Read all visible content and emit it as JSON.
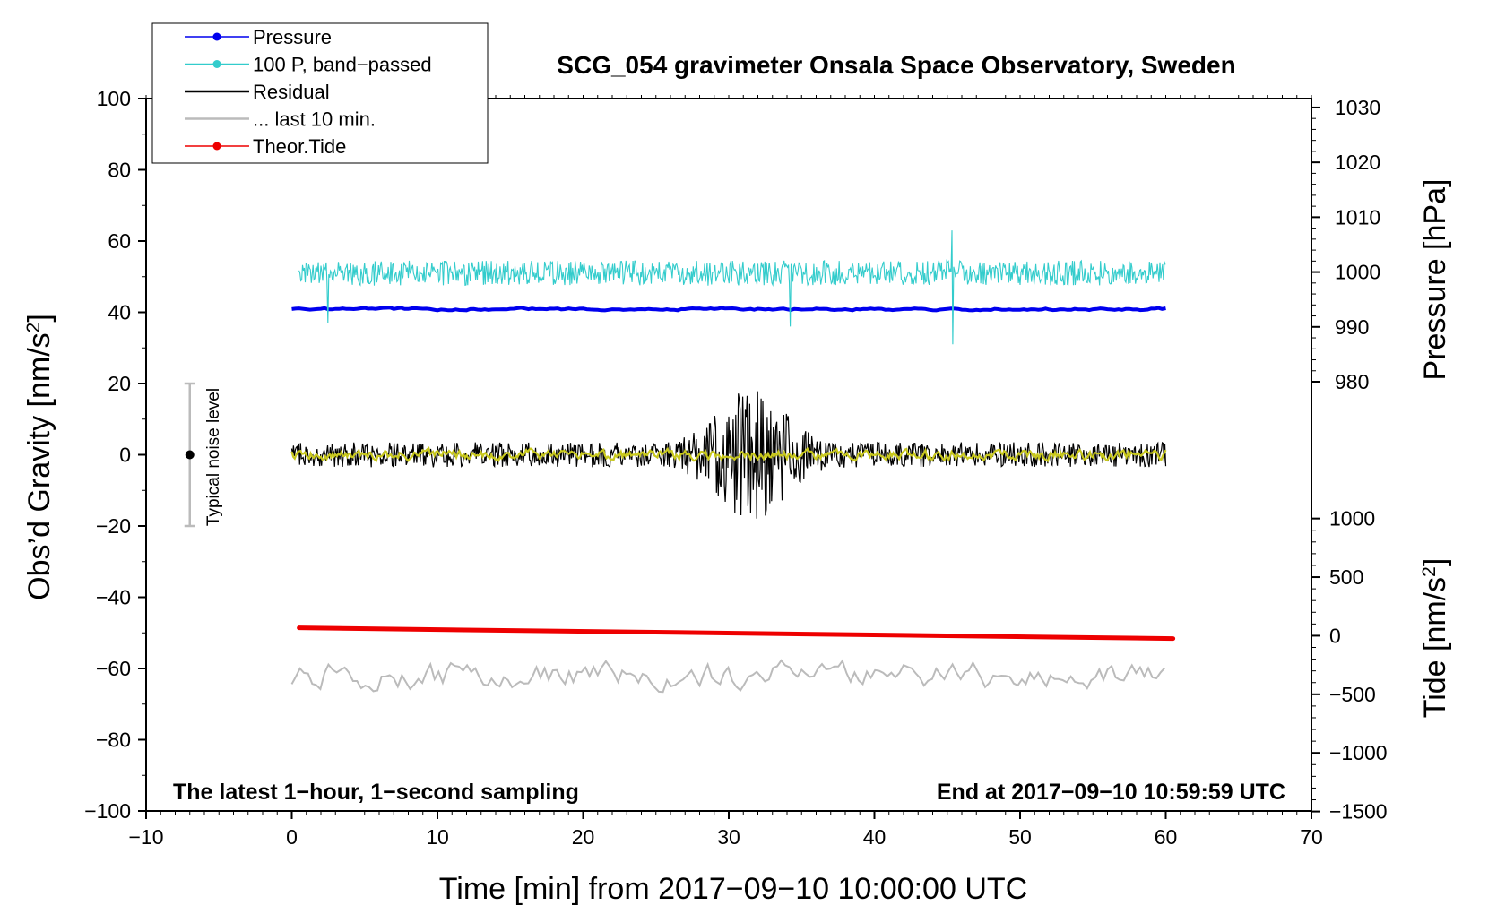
{
  "chart_data": {
    "type": "line",
    "title": "SCG_054 gravimeter Onsala Space Observatory, Sweden",
    "xlabel": "Time [min] from 2017−09−10 10:00:00 UTC",
    "ylabel": "Obs’d Gravity [nm/s²]",
    "ylabel_main": "Obs’d Gravity [nm/s",
    "ylabel_sup": "2",
    "ylabel_end": "]",
    "right_pressure_label": "Pressure [hPa]",
    "right_tide_label_main": "Tide [nm/s",
    "right_tide_label_sup": "2",
    "right_tide_label_end": "]",
    "xlim": [
      -10,
      70
    ],
    "ylim": [
      -100,
      100
    ],
    "xticks": [
      "−10",
      "0",
      "10",
      "20",
      "30",
      "40",
      "50",
      "60",
      "70"
    ],
    "xtick_values": [
      -10,
      0,
      10,
      20,
      30,
      40,
      50,
      60,
      70
    ],
    "yticks": [
      "−100",
      "−80",
      "−60",
      "−40",
      "−20",
      "0",
      "20",
      "40",
      "60",
      "80",
      "100"
    ],
    "ytick_values": [
      -100,
      -80,
      -60,
      -40,
      -20,
      0,
      20,
      40,
      60,
      80,
      100
    ],
    "pressure_ticks": [
      "980",
      "990",
      "1000",
      "1010",
      "1020",
      "1030"
    ],
    "pressure_tick_values": [
      980,
      990,
      1000,
      1010,
      1020,
      1030
    ],
    "pressure_axis": {
      "gravity_at_980": 20.5,
      "gravity_per_hpa": 1.54
    },
    "tide_ticks": [
      "−1500",
      "−1000",
      "−500",
      "0",
      "500",
      "1000"
    ],
    "tide_tick_values": [
      -1500,
      -1000,
      -500,
      0,
      500,
      1000
    ],
    "tide_axis": {
      "gravity_at_0": -50.8,
      "gravity_per_unit": 0.0329
    },
    "bottom_left_note": "The latest 1−hour, 1−second sampling",
    "bottom_right_note": "End at 2017−09−10 10:59:59 UTC",
    "noise_bar": {
      "x": -7,
      "center": 0,
      "low": -20,
      "high": 20,
      "label": "Typical noise level"
    },
    "legend": [
      {
        "label": "Pressure",
        "color": "#0000ee",
        "marker": true
      },
      {
        "label": "100 P, band−passed",
        "color": "#33cccc",
        "marker": true
      },
      {
        "label": "Residual",
        "color": "#000000",
        "marker": false
      },
      {
        "label": "... last 10 min.",
        "color": "#bbbbbb",
        "marker": false
      },
      {
        "label": "Theor.Tide",
        "color": "#ee0000",
        "marker": true
      }
    ],
    "series": [
      {
        "name": "Pressure",
        "color": "#0000ee",
        "x_range": [
          0,
          60
        ],
        "base": 40.9,
        "amplitude": 0.3
      },
      {
        "name": "100 P, band−passed",
        "color": "#33cccc",
        "x_range": [
          0.5,
          60
        ],
        "base": 51,
        "amplitude": 3.5,
        "spikes": [
          [
            2.5,
            -14
          ],
          [
            34.2,
            -15
          ],
          [
            45.3,
            12
          ],
          [
            45.4,
            -20
          ]
        ]
      },
      {
        "name": "Residual",
        "color": "#000000",
        "x_range": [
          0,
          60
        ],
        "base": 0,
        "amplitude": 3.5,
        "burst": {
          "center": 31.5,
          "width": 3,
          "amplitude": 16
        }
      },
      {
        "name": "Residual (smoothed)",
        "color": "#c8c81e",
        "x_range": [
          0,
          60
        ],
        "base": 0,
        "amplitude": 1.3
      },
      {
        "name": "... last 10 min.",
        "color": "#bbbbbb",
        "x_range": [
          0,
          60
        ],
        "base": -62,
        "amplitude": 3.5
      },
      {
        "name": "Theor.Tide",
        "color": "#ee0000",
        "x": [
          0.5,
          60.5
        ],
        "y": [
          -48.6,
          -51.6
        ]
      }
    ]
  }
}
